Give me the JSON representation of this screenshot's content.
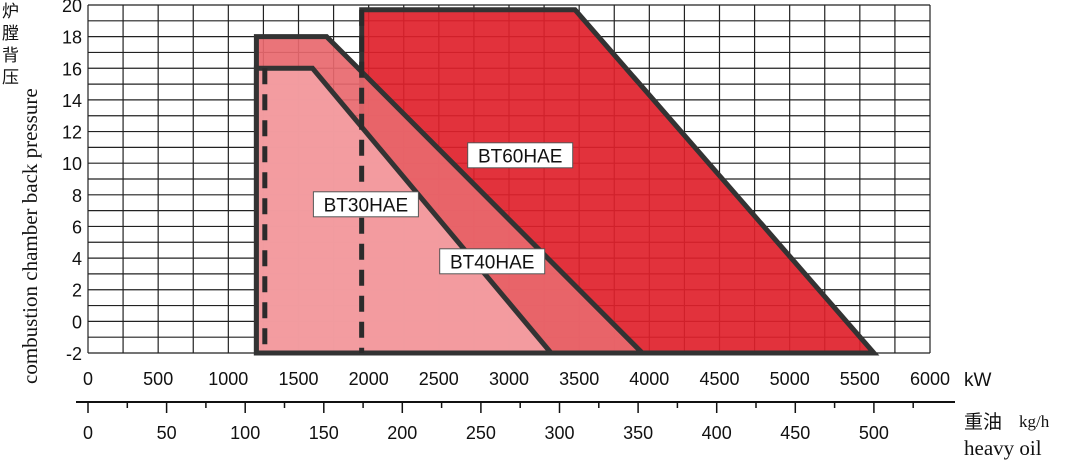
{
  "chart_data": {
    "type": "area",
    "y_axis": {
      "label_cn": "炉膛背压",
      "label_en": "combustion chamber back pressure",
      "ticks": [
        -2,
        0,
        2,
        4,
        6,
        8,
        10,
        12,
        14,
        16,
        18,
        20
      ],
      "ylim": [
        -2,
        20
      ]
    },
    "x_axis": {
      "unit": "kW",
      "ticks": [
        0,
        500,
        1000,
        1500,
        2000,
        2500,
        3000,
        3500,
        4000,
        4500,
        5000,
        5500,
        6000
      ],
      "xlim": [
        0,
        6000
      ]
    },
    "x_axis_secondary": {
      "unit_cn": "重油",
      "unit": "kg/h",
      "label_en": "heavy oil",
      "ticks": [
        0,
        50,
        100,
        150,
        200,
        250,
        300,
        350,
        400,
        450,
        500
      ]
    },
    "grid": true,
    "series": [
      {
        "name": "BT60HAE",
        "color": "#e0212b",
        "points": [
          [
            1950,
            -2
          ],
          [
            1950,
            19.7
          ],
          [
            3470,
            19.7
          ],
          [
            5600,
            -2
          ]
        ],
        "min_line_x": 1950
      },
      {
        "name": "BT40HAE",
        "color": "#e8686e",
        "points": [
          [
            1200,
            -2
          ],
          [
            1200,
            18
          ],
          [
            1700,
            18
          ],
          [
            3950,
            -2
          ]
        ],
        "min_line_x": 1950
      },
      {
        "name": "BT30HAE",
        "color": "#f3a0a4",
        "points": [
          [
            1200,
            -2
          ],
          [
            1200,
            16
          ],
          [
            1600,
            16
          ],
          [
            3300,
            -2
          ]
        ],
        "min_line_x": 1260
      }
    ],
    "labels": [
      {
        "series": "BT60HAE",
        "text": "BT60HAE"
      },
      {
        "series": "BT40HAE",
        "text": "BT40HAE"
      },
      {
        "series": "BT30HAE",
        "text": "BT30HAE"
      }
    ]
  }
}
